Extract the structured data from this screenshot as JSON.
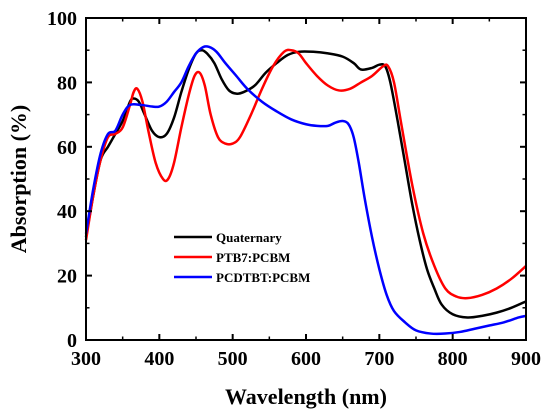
{
  "chart_data": {
    "type": "line",
    "xlabel": "Wavelength (nm)",
    "ylabel": "Absorption (%)",
    "xlim": [
      300,
      900
    ],
    "ylim": [
      0,
      100
    ],
    "x_ticks": [
      "300",
      "400",
      "500",
      "600",
      "700",
      "800",
      "900"
    ],
    "y_ticks": [
      "0",
      "20",
      "40",
      "60",
      "80",
      "100"
    ],
    "grid": false,
    "legend_position": "center-left",
    "series": [
      {
        "name": "Quaternary",
        "color": "#000000",
        "points": [
          [
            300,
            32
          ],
          [
            310,
            45
          ],
          [
            320,
            56
          ],
          [
            330,
            60
          ],
          [
            340,
            64
          ],
          [
            350,
            68
          ],
          [
            360,
            74
          ],
          [
            365,
            75
          ],
          [
            372,
            74
          ],
          [
            380,
            70
          ],
          [
            390,
            65
          ],
          [
            400,
            63
          ],
          [
            410,
            64
          ],
          [
            420,
            69
          ],
          [
            430,
            77
          ],
          [
            440,
            84
          ],
          [
            450,
            89
          ],
          [
            458,
            90
          ],
          [
            465,
            89
          ],
          [
            475,
            86
          ],
          [
            485,
            81
          ],
          [
            495,
            77.5
          ],
          [
            505,
            76.5
          ],
          [
            515,
            77
          ],
          [
            530,
            79
          ],
          [
            545,
            83
          ],
          [
            560,
            86
          ],
          [
            575,
            88.5
          ],
          [
            590,
            89.5
          ],
          [
            610,
            89.5
          ],
          [
            630,
            89
          ],
          [
            650,
            88
          ],
          [
            665,
            86
          ],
          [
            675,
            84
          ],
          [
            690,
            84.5
          ],
          [
            700,
            85.5
          ],
          [
            708,
            85
          ],
          [
            715,
            80
          ],
          [
            725,
            68
          ],
          [
            735,
            55
          ],
          [
            745,
            42
          ],
          [
            755,
            31
          ],
          [
            765,
            22
          ],
          [
            775,
            16
          ],
          [
            785,
            11
          ],
          [
            800,
            8
          ],
          [
            820,
            7
          ],
          [
            840,
            7.5
          ],
          [
            860,
            8.5
          ],
          [
            880,
            10
          ],
          [
            900,
            12
          ]
        ]
      },
      {
        "name": "PTB7:PCBM",
        "color": "#ff0000",
        "points": [
          [
            300,
            31
          ],
          [
            310,
            45
          ],
          [
            320,
            56
          ],
          [
            330,
            63
          ],
          [
            340,
            64
          ],
          [
            350,
            66
          ],
          [
            360,
            73
          ],
          [
            365,
            77
          ],
          [
            370,
            78
          ],
          [
            377,
            74
          ],
          [
            385,
            65
          ],
          [
            395,
            55
          ],
          [
            405,
            50
          ],
          [
            412,
            50
          ],
          [
            420,
            55
          ],
          [
            430,
            66
          ],
          [
            440,
            76
          ],
          [
            448,
            82
          ],
          [
            455,
            83
          ],
          [
            462,
            79
          ],
          [
            470,
            70
          ],
          [
            480,
            63
          ],
          [
            490,
            61
          ],
          [
            500,
            61
          ],
          [
            510,
            63
          ],
          [
            525,
            70
          ],
          [
            540,
            78
          ],
          [
            555,
            85
          ],
          [
            570,
            89.5
          ],
          [
            580,
            90
          ],
          [
            590,
            89
          ],
          [
            600,
            86
          ],
          [
            615,
            82
          ],
          [
            630,
            79
          ],
          [
            645,
            77.5
          ],
          [
            660,
            78
          ],
          [
            675,
            80
          ],
          [
            690,
            82
          ],
          [
            705,
            85
          ],
          [
            712,
            85
          ],
          [
            720,
            80
          ],
          [
            730,
            67
          ],
          [
            745,
            48
          ],
          [
            760,
            33
          ],
          [
            775,
            23
          ],
          [
            790,
            16
          ],
          [
            805,
            13.5
          ],
          [
            820,
            13
          ],
          [
            840,
            14
          ],
          [
            860,
            16
          ],
          [
            880,
            19
          ],
          [
            900,
            23
          ]
        ]
      },
      {
        "name": "PCDTBT:PCBM",
        "color": "#0000ff",
        "points": [
          [
            300,
            33
          ],
          [
            310,
            47
          ],
          [
            320,
            58
          ],
          [
            330,
            64
          ],
          [
            340,
            65
          ],
          [
            350,
            70
          ],
          [
            360,
            73
          ],
          [
            375,
            73
          ],
          [
            390,
            72.5
          ],
          [
            400,
            72.5
          ],
          [
            410,
            74
          ],
          [
            420,
            77
          ],
          [
            430,
            80
          ],
          [
            440,
            85
          ],
          [
            450,
            89
          ],
          [
            460,
            91
          ],
          [
            468,
            91
          ],
          [
            478,
            89.5
          ],
          [
            490,
            86
          ],
          [
            505,
            82
          ],
          [
            520,
            78
          ],
          [
            540,
            74
          ],
          [
            560,
            71
          ],
          [
            580,
            68.5
          ],
          [
            600,
            67
          ],
          [
            615,
            66.5
          ],
          [
            630,
            66.5
          ],
          [
            640,
            67.5
          ],
          [
            650,
            68
          ],
          [
            658,
            67
          ],
          [
            665,
            63
          ],
          [
            672,
            55
          ],
          [
            680,
            44
          ],
          [
            690,
            32
          ],
          [
            700,
            22
          ],
          [
            710,
            14
          ],
          [
            720,
            9
          ],
          [
            735,
            5.5
          ],
          [
            750,
            3
          ],
          [
            770,
            2
          ],
          [
            790,
            2
          ],
          [
            810,
            2.5
          ],
          [
            830,
            3.5
          ],
          [
            850,
            4.5
          ],
          [
            870,
            5.5
          ],
          [
            890,
            7
          ],
          [
            900,
            7.5
          ]
        ]
      }
    ]
  }
}
